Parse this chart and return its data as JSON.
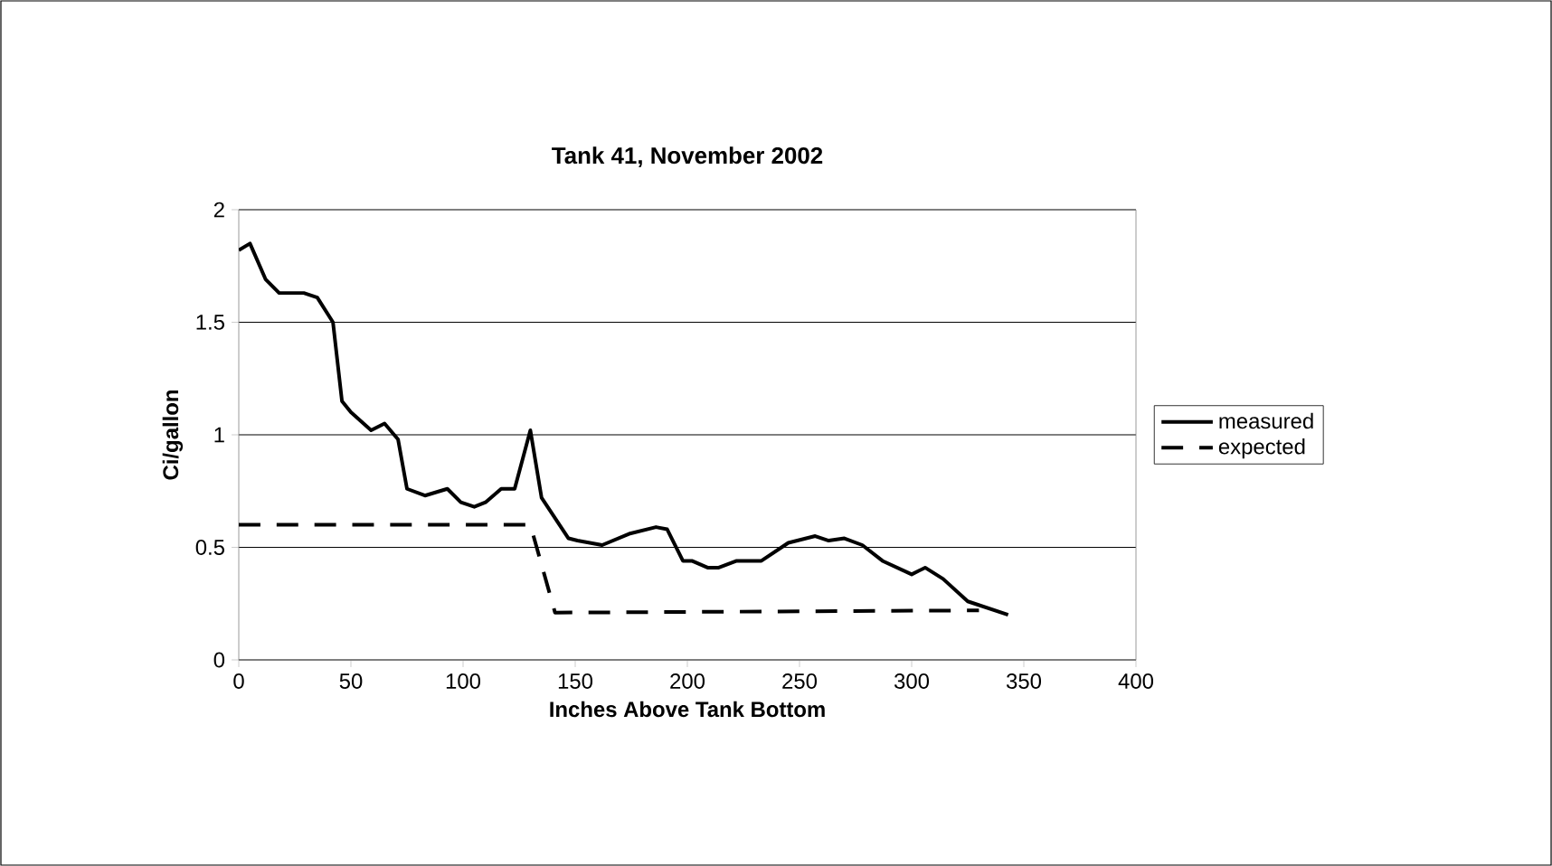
{
  "chart_data": {
    "type": "line",
    "title": "Tank 41, November 2002",
    "xlabel": "Inches Above Tank Bottom",
    "ylabel": "Ci/gallon",
    "xlim": [
      0,
      400
    ],
    "xticks": [
      0,
      50,
      100,
      150,
      200,
      250,
      300,
      350,
      400
    ],
    "ylim": [
      0,
      2
    ],
    "yticks": [
      0,
      0.5,
      1,
      1.5,
      2
    ],
    "grid": "y",
    "legend": "right",
    "marker": "none",
    "series": [
      {
        "name": "measured",
        "color": "#000000",
        "line_style": "solid",
        "x": [
          0,
          5,
          12,
          18,
          29,
          35,
          42,
          46,
          50,
          59,
          65,
          71,
          75,
          83,
          93,
          99,
          105,
          110,
          117,
          123,
          130,
          135,
          147,
          151,
          162,
          174,
          186,
          191,
          198,
          202,
          209,
          214,
          222,
          233,
          245,
          257,
          263,
          270,
          278,
          287,
          300,
          306,
          314,
          325,
          343
        ],
        "values": [
          1.82,
          1.85,
          1.69,
          1.63,
          1.63,
          1.61,
          1.5,
          1.15,
          1.1,
          1.02,
          1.05,
          0.98,
          0.76,
          0.73,
          0.76,
          0.7,
          0.68,
          0.7,
          0.76,
          0.76,
          1.02,
          0.72,
          0.54,
          0.53,
          0.51,
          0.56,
          0.59,
          0.58,
          0.44,
          0.44,
          0.41,
          0.41,
          0.44,
          0.44,
          0.52,
          0.55,
          0.53,
          0.54,
          0.51,
          0.44,
          0.38,
          0.41,
          0.36,
          0.26,
          0.2
        ]
      },
      {
        "name": "expected",
        "color": "#000000",
        "line_style": "dashed",
        "x": [
          0,
          130,
          141,
          330
        ],
        "values": [
          0.6,
          0.6,
          0.21,
          0.22
        ]
      }
    ]
  }
}
